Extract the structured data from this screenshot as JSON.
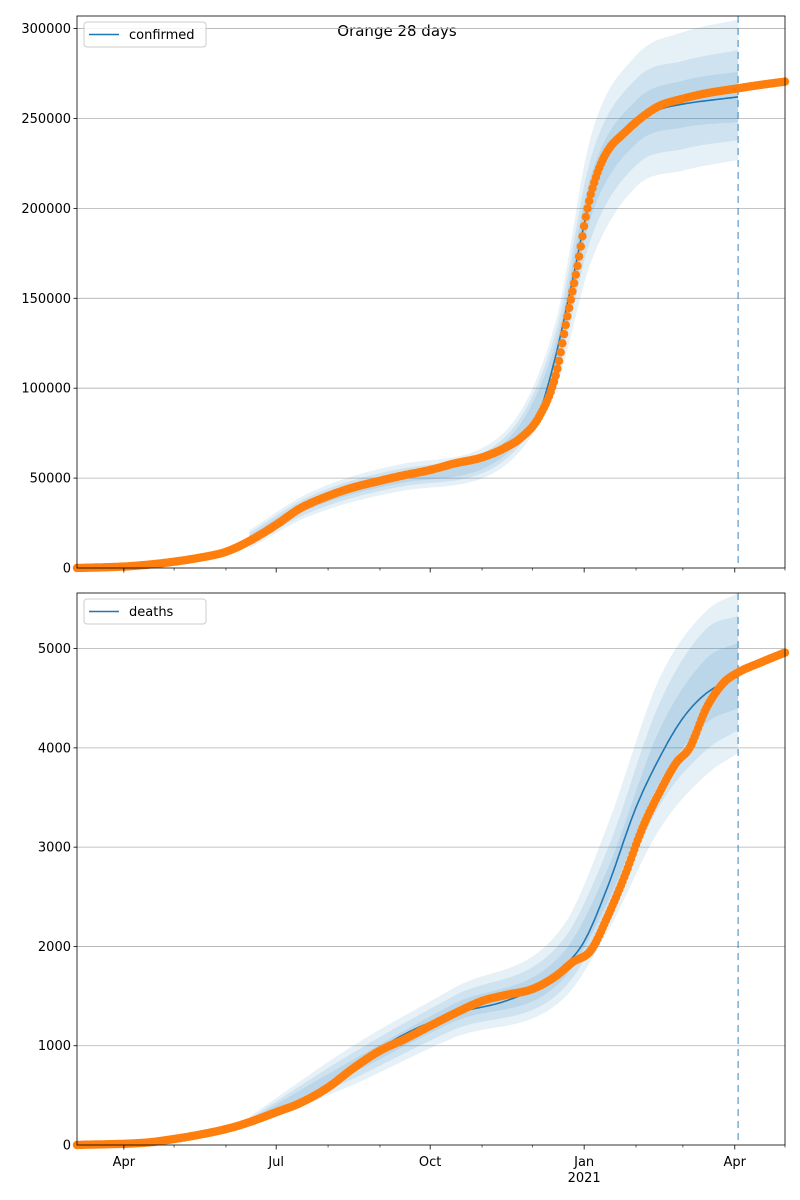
{
  "figure": {
    "title": "Orange 28 days"
  },
  "style": {
    "line_color": "#1f77b4",
    "band_color": "#1f77b4",
    "point_color": "#ff7f0e",
    "grid_color": "#b0b0b0",
    "vline_color": "#1f77b4"
  },
  "x_ticks": {
    "major": [
      {
        "date": "2020-04-01",
        "label": "Apr",
        "sublabel": ""
      },
      {
        "date": "2020-07-01",
        "label": "Jul",
        "sublabel": ""
      },
      {
        "date": "2020-10-01",
        "label": "Oct",
        "sublabel": ""
      },
      {
        "date": "2021-01-01",
        "label": "Jan",
        "sublabel": "2021"
      },
      {
        "date": "2021-04-01",
        "label": "Apr",
        "sublabel": ""
      }
    ],
    "minor": [
      "2020-05-01",
      "2020-06-01",
      "2020-08-01",
      "2020-09-01",
      "2020-11-01",
      "2020-12-01",
      "2021-02-01",
      "2021-03-01",
      "2021-05-01"
    ]
  },
  "chart_data": [
    {
      "type": "line",
      "legend": "confirmed",
      "legend_position": "upper-left",
      "grid": "y",
      "xlim": [
        "2020-03-04",
        "2021-05-01"
      ],
      "ylim": [
        0,
        307000
      ],
      "yticks": [
        0,
        50000,
        100000,
        150000,
        200000,
        250000,
        300000
      ],
      "yticklabels": [
        "0",
        "50000",
        "100000",
        "150000",
        "200000",
        "250000",
        "300000"
      ],
      "forecast_start": "2021-04-03",
      "model_median": [
        [
          "2020-03-04",
          500
        ],
        [
          "2020-05-01",
          4000
        ],
        [
          "2020-06-01",
          9500
        ],
        [
          "2020-06-15",
          16000
        ],
        [
          "2020-07-01",
          23000
        ],
        [
          "2020-07-20",
          35000
        ],
        [
          "2020-08-15",
          44000
        ],
        [
          "2020-09-15",
          50500
        ],
        [
          "2020-10-15",
          57000
        ],
        [
          "2020-11-10",
          63000
        ],
        [
          "2020-11-25",
          72000
        ],
        [
          "2020-12-05",
          86000
        ],
        [
          "2020-12-15",
          118000
        ],
        [
          "2020-12-25",
          160000
        ],
        [
          "2021-01-05",
          207000
        ],
        [
          "2021-01-15",
          232000
        ],
        [
          "2021-02-01",
          248000
        ],
        [
          "2021-02-15",
          255000
        ],
        [
          "2021-03-01",
          258000
        ],
        [
          "2021-04-03",
          262000
        ]
      ],
      "band_inner": [
        [
          "2020-06-15",
          14000,
          18000
        ],
        [
          "2020-07-20",
          32500,
          37500
        ],
        [
          "2020-09-15",
          47500,
          53500
        ],
        [
          "2020-11-10",
          59500,
          66500
        ],
        [
          "2020-12-15",
          111000,
          125000
        ],
        [
          "2021-01-05",
          195000,
          218000
        ],
        [
          "2021-02-01",
          236000,
          260000
        ],
        [
          "2021-03-01",
          245000,
          271000
        ],
        [
          "2021-04-03",
          248000,
          276000
        ]
      ],
      "band_mid": [
        [
          "2020-06-15",
          12500,
          19500
        ],
        [
          "2020-07-20",
          30500,
          39500
        ],
        [
          "2020-09-15",
          45500,
          55500
        ],
        [
          "2020-11-10",
          57000,
          69000
        ],
        [
          "2020-12-15",
          106000,
          131000
        ],
        [
          "2021-01-05",
          183000,
          228000
        ],
        [
          "2021-02-01",
          224000,
          272000
        ],
        [
          "2021-03-01",
          233000,
          282000
        ],
        [
          "2021-04-03",
          238000,
          288000
        ]
      ],
      "band_outer": [
        [
          "2020-06-15",
          11000,
          21000
        ],
        [
          "2020-07-20",
          28500,
          41500
        ],
        [
          "2020-09-15",
          43000,
          58000
        ],
        [
          "2020-11-10",
          54000,
          72000
        ],
        [
          "2020-12-15",
          100000,
          137000
        ],
        [
          "2021-01-05",
          170000,
          240000
        ],
        [
          "2021-02-01",
          212000,
          285000
        ],
        [
          "2021-03-01",
          221000,
          298000
        ],
        [
          "2021-04-03",
          227000,
          305000
        ]
      ],
      "observed": [
        [
          "2020-03-04",
          0
        ],
        [
          "2020-04-01",
          800
        ],
        [
          "2020-04-15",
          1800
        ],
        [
          "2020-05-01",
          3500
        ],
        [
          "2020-05-15",
          5500
        ],
        [
          "2020-06-01",
          9000
        ],
        [
          "2020-06-15",
          15000
        ],
        [
          "2020-07-01",
          24000
        ],
        [
          "2020-07-15",
          33000
        ],
        [
          "2020-08-01",
          40000
        ],
        [
          "2020-08-15",
          44500
        ],
        [
          "2020-09-01",
          48500
        ],
        [
          "2020-09-15",
          51500
        ],
        [
          "2020-10-01",
          54500
        ],
        [
          "2020-10-15",
          58000
        ],
        [
          "2020-11-01",
          61500
        ],
        [
          "2020-11-15",
          67000
        ],
        [
          "2020-11-25",
          73000
        ],
        [
          "2020-12-05",
          84000
        ],
        [
          "2020-12-15",
          107000
        ],
        [
          "2020-12-22",
          140000
        ],
        [
          "2020-12-28",
          168000
        ],
        [
          "2021-01-03",
          200000
        ],
        [
          "2021-01-09",
          220000
        ],
        [
          "2021-01-15",
          232000
        ],
        [
          "2021-01-25",
          242000
        ],
        [
          "2021-02-05",
          251000
        ],
        [
          "2021-02-15",
          257000
        ],
        [
          "2021-03-01",
          261000
        ],
        [
          "2021-03-15",
          264000
        ],
        [
          "2021-04-01",
          266500
        ],
        [
          "2021-04-15",
          268500
        ],
        [
          "2021-05-01",
          270500
        ]
      ]
    },
    {
      "type": "line",
      "legend": "deaths",
      "legend_position": "upper-left",
      "grid": "y",
      "xlim": [
        "2020-03-04",
        "2021-05-01"
      ],
      "ylim": [
        0,
        5560
      ],
      "yticks": [
        0,
        1000,
        2000,
        3000,
        4000,
        5000
      ],
      "yticklabels": [
        "0",
        "1000",
        "2000",
        "3000",
        "4000",
        "5000"
      ],
      "forecast_start": "2021-04-03",
      "model_median": [
        [
          "2020-03-04",
          0
        ],
        [
          "2020-04-15",
          30
        ],
        [
          "2020-05-15",
          110
        ],
        [
          "2020-06-15",
          230
        ],
        [
          "2020-07-15",
          430
        ],
        [
          "2020-08-15",
          780
        ],
        [
          "2020-09-15",
          1110
        ],
        [
          "2020-10-15",
          1320
        ],
        [
          "2020-11-15",
          1450
        ],
        [
          "2020-12-05",
          1600
        ],
        [
          "2020-12-20",
          1800
        ],
        [
          "2021-01-01",
          2050
        ],
        [
          "2021-01-15",
          2600
        ],
        [
          "2021-02-01",
          3400
        ],
        [
          "2021-02-15",
          3900
        ],
        [
          "2021-03-01",
          4300
        ],
        [
          "2021-03-15",
          4550
        ],
        [
          "2021-04-03",
          4720
        ]
      ],
      "band_inner": [
        [
          "2020-06-15",
          220,
          250
        ],
        [
          "2020-08-15",
          720,
          850
        ],
        [
          "2020-10-15",
          1240,
          1420
        ],
        [
          "2020-12-20",
          1680,
          1950
        ],
        [
          "2021-01-15",
          2450,
          2780
        ],
        [
          "2021-02-15",
          3650,
          4180
        ],
        [
          "2021-03-15",
          4250,
          4900
        ],
        [
          "2021-04-03",
          4400,
          5060
        ]
      ],
      "band_mid": [
        [
          "2020-06-15",
          205,
          265
        ],
        [
          "2020-08-15",
          660,
          920
        ],
        [
          "2020-10-15",
          1160,
          1500
        ],
        [
          "2020-12-20",
          1580,
          2080
        ],
        [
          "2021-01-15",
          2300,
          2980
        ],
        [
          "2021-02-15",
          3420,
          4450
        ],
        [
          "2021-03-15",
          3980,
          5200
        ],
        [
          "2021-04-03",
          4180,
          5330
        ]
      ],
      "band_outer": [
        [
          "2020-06-15",
          190,
          285
        ],
        [
          "2020-08-15",
          600,
          990
        ],
        [
          "2020-10-15",
          1080,
          1580
        ],
        [
          "2020-12-20",
          1480,
          2220
        ],
        [
          "2021-01-15",
          2150,
          3220
        ],
        [
          "2021-02-15",
          3180,
          4700
        ],
        [
          "2021-03-15",
          3730,
          5380
        ],
        [
          "2021-04-03",
          3950,
          5560
        ]
      ],
      "observed": [
        [
          "2020-03-04",
          0
        ],
        [
          "2020-04-15",
          25
        ],
        [
          "2020-05-01",
          60
        ],
        [
          "2020-05-15",
          100
        ],
        [
          "2020-06-01",
          160
        ],
        [
          "2020-06-15",
          230
        ],
        [
          "2020-07-01",
          330
        ],
        [
          "2020-07-15",
          420
        ],
        [
          "2020-08-01",
          580
        ],
        [
          "2020-08-15",
          760
        ],
        [
          "2020-09-01",
          950
        ],
        [
          "2020-09-15",
          1060
        ],
        [
          "2020-10-01",
          1200
        ],
        [
          "2020-10-15",
          1320
        ],
        [
          "2020-11-01",
          1450
        ],
        [
          "2020-11-15",
          1510
        ],
        [
          "2020-12-01",
          1570
        ],
        [
          "2020-12-15",
          1700
        ],
        [
          "2020-12-25",
          1840
        ],
        [
          "2021-01-05",
          1960
        ],
        [
          "2021-01-15",
          2300
        ],
        [
          "2021-01-25",
          2700
        ],
        [
          "2021-02-05",
          3200
        ],
        [
          "2021-02-15",
          3550
        ],
        [
          "2021-02-25",
          3850
        ],
        [
          "2021-03-05",
          4000
        ],
        [
          "2021-03-15",
          4400
        ],
        [
          "2021-03-25",
          4650
        ],
        [
          "2021-04-03",
          4760
        ],
        [
          "2021-04-15",
          4850
        ],
        [
          "2021-05-01",
          4960
        ]
      ]
    }
  ]
}
